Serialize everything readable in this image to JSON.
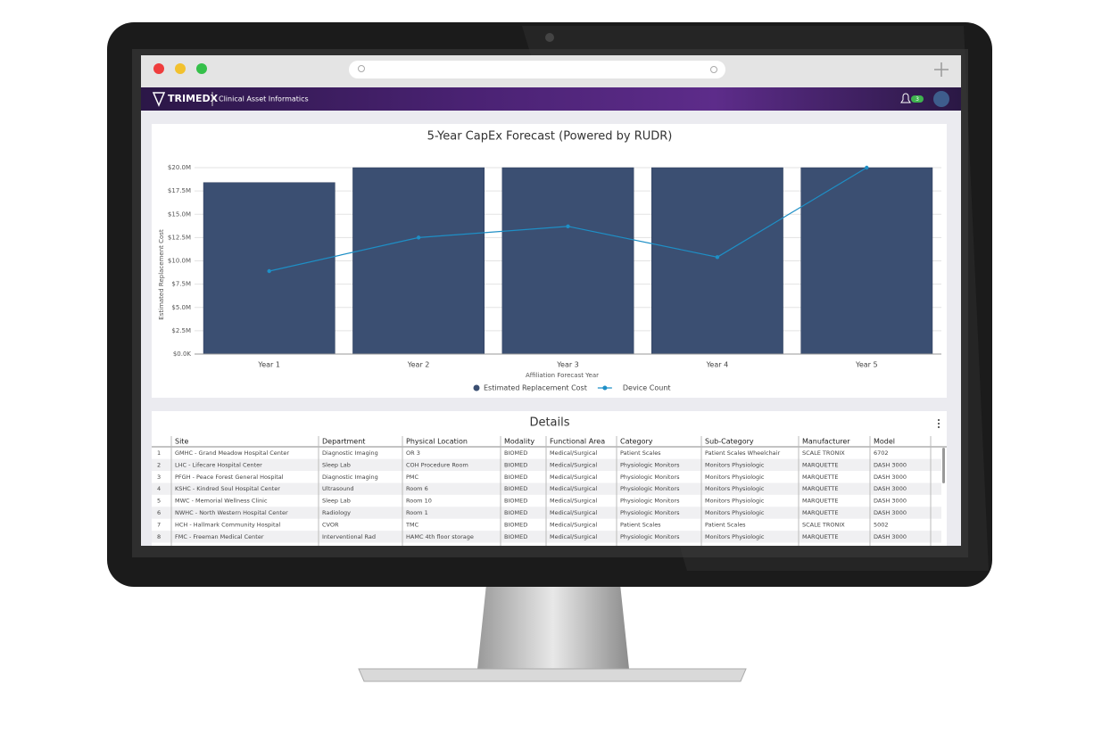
{
  "app": {
    "brand": "TRIMEDX",
    "section": "Clinical Asset Informatics",
    "notification_count": "3"
  },
  "chart_data": {
    "type": "bar",
    "title": "5-Year CapEx Forecast (Powered by RUDR)",
    "x_label": "Affiliation Forecast Year",
    "y_label": "Estimated Replacement Cost",
    "categories": [
      "Year 1",
      "Year 2",
      "Year 3",
      "Year 4",
      "Year 5"
    ],
    "series": [
      {
        "name": "Estimated Replacement Cost",
        "type": "bar",
        "color": "#3b4f72",
        "values": [
          18400000,
          20000000,
          20000000,
          20000000,
          20000000
        ]
      },
      {
        "name": "Device Count",
        "type": "line",
        "color": "#1e8fc6",
        "values": [
          8900000,
          12500000,
          13700000,
          10400000,
          20000000
        ]
      }
    ],
    "ylim": [
      0,
      20000000
    ],
    "yticks": [
      {
        "value": 0,
        "label": "$0.0K"
      },
      {
        "value": 2500000,
        "label": "$2.5M"
      },
      {
        "value": 5000000,
        "label": "$5.0M"
      },
      {
        "value": 7500000,
        "label": "$7.5M"
      },
      {
        "value": 10000000,
        "label": "$10.0M"
      },
      {
        "value": 12500000,
        "label": "$12.5M"
      },
      {
        "value": 15000000,
        "label": "$15.0M"
      },
      {
        "value": 17500000,
        "label": "$17.5M"
      },
      {
        "value": 20000000,
        "label": "$20.0M"
      }
    ],
    "grid": true,
    "legend": "bottom"
  },
  "details": {
    "title": "Details",
    "columns": [
      "Site",
      "Department",
      "Physical Location",
      "Modality",
      "Functional Area",
      "Category",
      "Sub-Category",
      "Manufacturer",
      "Model"
    ],
    "rows": [
      [
        "1",
        "GMHC - Grand Meadow Hospital Center",
        "Diagnostic Imaging",
        "OR 3",
        "BIOMED",
        "Medical/Surgical",
        "Patient Scales",
        "Patient Scales Wheelchair",
        "SCALE TRONIX",
        "6702"
      ],
      [
        "2",
        "LHC - Lifecare Hospital Center",
        "Sleep Lab",
        "COH Procedure Room",
        "BIOMED",
        "Medical/Surgical",
        "Physiologic Monitors",
        "Monitors Physiologic",
        "MARQUETTE",
        "DASH 3000"
      ],
      [
        "3",
        "PFGH - Peace Forest General Hospital",
        "Diagnostic Imaging",
        "PMC",
        "BIOMED",
        "Medical/Surgical",
        "Physiologic Monitors",
        "Monitors Physiologic",
        "MARQUETTE",
        "DASH 3000"
      ],
      [
        "4",
        "KSHC - Kindred Soul Hospital Center",
        "Ultrasound",
        "Room 6",
        "BIOMED",
        "Medical/Surgical",
        "Physiologic Monitors",
        "Monitors Physiologic",
        "MARQUETTE",
        "DASH 3000"
      ],
      [
        "5",
        "MWC - Memorial Wellness Clinic",
        "Sleep Lab",
        "Room 10",
        "BIOMED",
        "Medical/Surgical",
        "Physiologic Monitors",
        "Monitors Physiologic",
        "MARQUETTE",
        "DASH 3000"
      ],
      [
        "6",
        "NWHC - North Western Hospital Center",
        "Radiology",
        "Room 1",
        "BIOMED",
        "Medical/Surgical",
        "Physiologic Monitors",
        "Monitors Physiologic",
        "MARQUETTE",
        "DASH 3000"
      ],
      [
        "7",
        "HCH - Hallmark Community Hospital",
        "CVOR",
        "TMC",
        "BIOMED",
        "Medical/Surgical",
        "Patient Scales",
        "Patient Scales",
        "SCALE TRONIX",
        "5002"
      ],
      [
        "8",
        "FMC - Freeman Medical Center",
        "Interventional Rad",
        "HAMC 4th floor storage",
        "BIOMED",
        "Medical/Surgical",
        "Physiologic Monitors",
        "Monitors Physiologic",
        "MARQUETTE",
        "DASH 3000"
      ]
    ]
  }
}
